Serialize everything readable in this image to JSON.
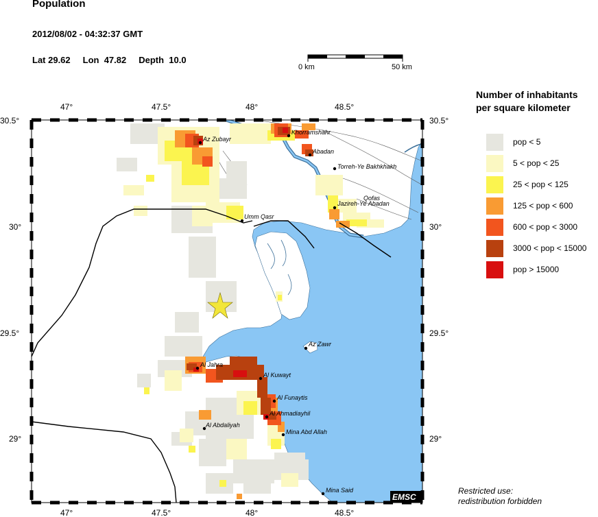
{
  "header": {
    "title": "Population",
    "datetime": "2012/08/02 - 04:32:37 GMT",
    "lat": "Lat 29.62",
    "lon": "Lon  47.82",
    "depth": "Depth  10.0"
  },
  "scale_bar": {
    "start_label": "0 km",
    "end_label": "50 km"
  },
  "axes": {
    "top_ticks": [
      "47°",
      "47.5°",
      "48°",
      "48.5°"
    ],
    "bottom_ticks": [
      "47°",
      "47.5°",
      "48°",
      "48.5°"
    ],
    "left_ticks": [
      "30.5°",
      "30°",
      "29.5°",
      "29°"
    ],
    "right_ticks": [
      "30.5°",
      "30°",
      "29.5°",
      "29°"
    ]
  },
  "places": [
    "Az Zubayr",
    "Khorramshahr",
    "Abadan",
    "Torreh-Ye Bakhkhakh",
    "Qofas",
    "Jazireh-Ye Abadan",
    "Umm Qasr",
    "Az Zawr",
    "Al Jahra",
    "Al Kuwayt",
    "Al Funaytis",
    "Al Ahmadiayhil",
    "Al Abdaliyah",
    "Mina Abd Allah",
    "Mina Said"
  ],
  "legend": {
    "title_line1": "Number of inhabitants",
    "title_line2": "per square kilometer",
    "items": [
      {
        "label": "pop < 5",
        "color": "#e6e6df"
      },
      {
        "label": "5 < pop < 25",
        "color": "#fbf8c2"
      },
      {
        "label": "25 < pop < 125",
        "color": "#fbf44f"
      },
      {
        "label": "125 < pop < 600",
        "color": "#f99b33"
      },
      {
        "label": "600 < pop < 3000",
        "color": "#f2551e"
      },
      {
        "label": "3000 < pop < 15000",
        "color": "#b8410f"
      },
      {
        "label": "pop > 15000",
        "color": "#d80f0f"
      }
    ]
  },
  "colors": {
    "water": "#8ac6f4",
    "land": "#ffffff",
    "star": "#f2e63a"
  },
  "badge": "EMSC",
  "footer": {
    "line1": "Restricted use:",
    "line2": "redistribution forbidden"
  }
}
